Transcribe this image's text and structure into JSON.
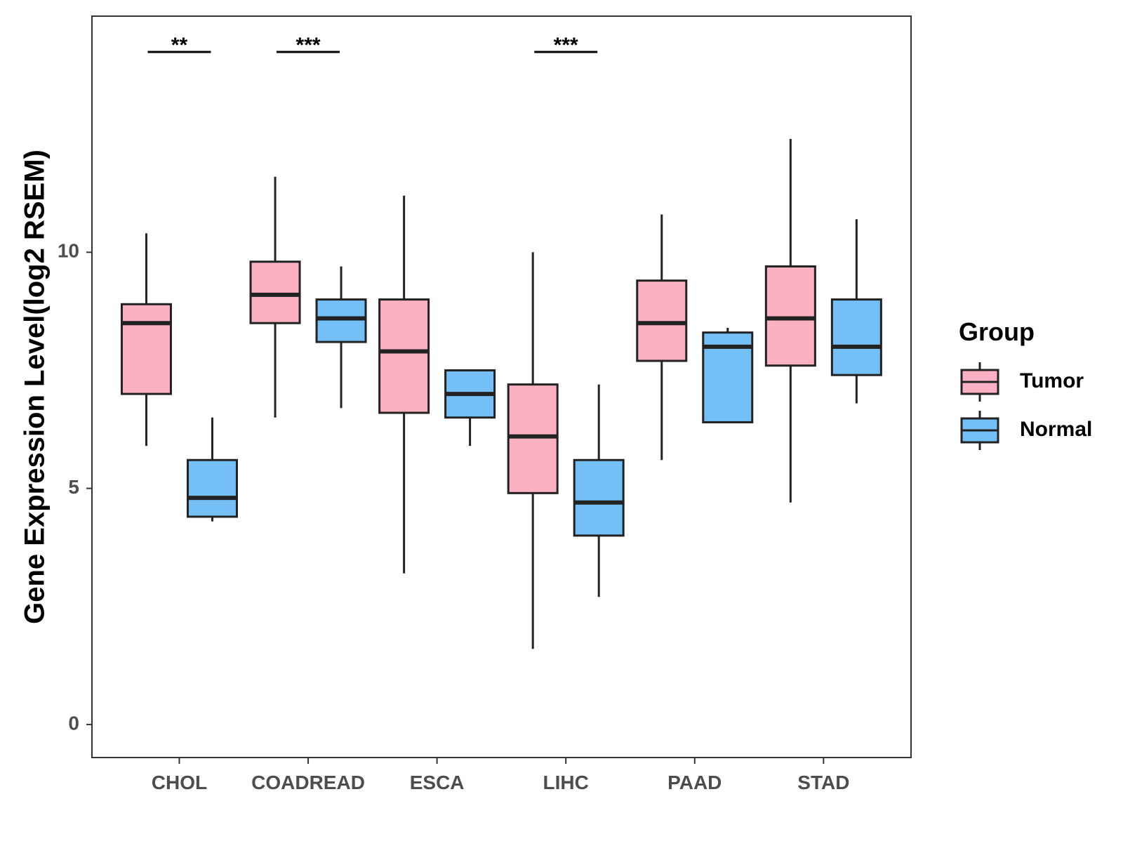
{
  "chart_data": {
    "type": "boxplot",
    "title": "",
    "xlabel": "",
    "ylabel": "Gene Expression Level(log2 RSEM)",
    "ylim": [
      -0.7,
      15
    ],
    "yticks": [
      0,
      5,
      10
    ],
    "grid": false,
    "categories": [
      "CHOL",
      "COADREAD",
      "ESCA",
      "LIHC",
      "PAAD",
      "STAD"
    ],
    "legend": {
      "title": "Group",
      "placement": "right",
      "entries": [
        {
          "name": "Tumor",
          "color": "#FBB1C2"
        },
        {
          "name": "Normal",
          "color": "#74BFF5"
        }
      ]
    },
    "series": [
      {
        "name": "Tumor",
        "color": "#FBB1C2",
        "boxes": [
          {
            "category": "CHOL",
            "whisker_low": 5.9,
            "q1": 7.0,
            "median": 8.5,
            "q3": 8.9,
            "whisker_high": 10.4
          },
          {
            "category": "COADREAD",
            "whisker_low": 6.5,
            "q1": 8.5,
            "median": 9.1,
            "q3": 9.8,
            "whisker_high": 11.6
          },
          {
            "category": "ESCA",
            "whisker_low": 3.2,
            "q1": 6.6,
            "median": 7.9,
            "q3": 9.0,
            "whisker_high": 11.2
          },
          {
            "category": "LIHC",
            "whisker_low": 1.6,
            "q1": 4.9,
            "median": 6.1,
            "q3": 7.2,
            "whisker_high": 10.0
          },
          {
            "category": "PAAD",
            "whisker_low": 5.6,
            "q1": 7.7,
            "median": 8.5,
            "q3": 9.4,
            "whisker_high": 10.8
          },
          {
            "category": "STAD",
            "whisker_low": 4.7,
            "q1": 7.6,
            "median": 8.6,
            "q3": 9.7,
            "whisker_high": 12.4
          }
        ]
      },
      {
        "name": "Normal",
        "color": "#74BFF5",
        "boxes": [
          {
            "category": "CHOL",
            "whisker_low": 4.3,
            "q1": 4.4,
            "median": 4.8,
            "q3": 5.6,
            "whisker_high": 6.5
          },
          {
            "category": "COADREAD",
            "whisker_low": 6.7,
            "q1": 8.1,
            "median": 8.6,
            "q3": 9.0,
            "whisker_high": 9.7
          },
          {
            "category": "ESCA",
            "whisker_low": 5.9,
            "q1": 6.5,
            "median": 7.0,
            "q3": 7.5,
            "whisker_high": 7.5
          },
          {
            "category": "LIHC",
            "whisker_low": 2.7,
            "q1": 4.0,
            "median": 4.7,
            "q3": 5.6,
            "whisker_high": 7.2
          },
          {
            "category": "PAAD",
            "whisker_low": 6.4,
            "q1": 6.4,
            "median": 8.0,
            "q3": 8.3,
            "whisker_high": 8.4
          },
          {
            "category": "STAD",
            "whisker_low": 6.8,
            "q1": 7.4,
            "median": 8.0,
            "q3": 9.0,
            "whisker_high": 10.7
          }
        ]
      }
    ],
    "annotations": [
      {
        "category": "CHOL",
        "label": "**"
      },
      {
        "category": "COADREAD",
        "label": "***"
      },
      {
        "category": "LIHC",
        "label": "***"
      }
    ]
  }
}
